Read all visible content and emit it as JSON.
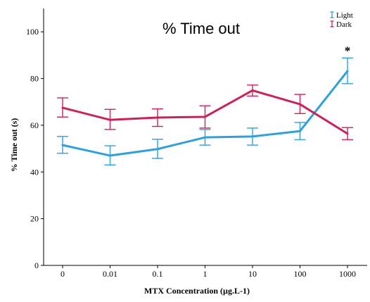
{
  "chart_data": {
    "type": "line",
    "title": "% Time out",
    "xlabel": "MTX Concentration (µg.L-1)",
    "ylabel": "% Time out (s)",
    "categories": [
      "0",
      "0.01",
      "0.1",
      "1",
      "10",
      "100",
      "1000"
    ],
    "yticks": [
      "0",
      "20",
      "40",
      "60",
      "80",
      "100"
    ],
    "ylim": [
      0,
      110
    ],
    "series": [
      {
        "name": "Light",
        "color": "#2ea0dc",
        "values": [
          51.5,
          47.0,
          49.8,
          54.8,
          55.2,
          57.5,
          83.2
        ],
        "error_low": [
          48.0,
          43.0,
          45.8,
          51.5,
          51.5,
          53.8,
          77.8
        ],
        "error_high": [
          55.2,
          51.2,
          54.0,
          58.2,
          58.8,
          61.2,
          88.8
        ]
      },
      {
        "name": "Dark",
        "color": "#cc2255",
        "values": [
          67.5,
          62.3,
          63.3,
          63.6,
          74.9,
          69.0,
          56.4
        ],
        "error_low": [
          63.5,
          58.2,
          59.5,
          58.8,
          72.5,
          65.0,
          53.8
        ],
        "error_high": [
          71.7,
          66.8,
          67.0,
          68.3,
          77.2,
          73.2,
          59.0
        ]
      }
    ],
    "annotations": [
      {
        "text": "*",
        "category": "1000"
      }
    ],
    "legend_position": "top-right",
    "grid": false
  }
}
